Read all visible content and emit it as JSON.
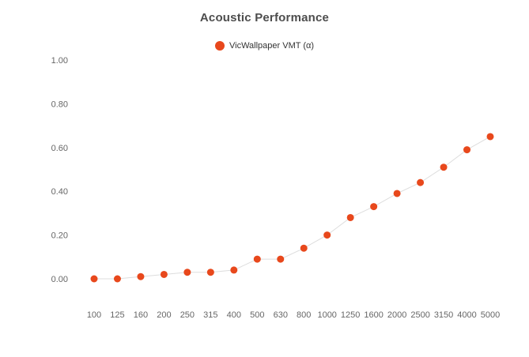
{
  "chart_data": {
    "type": "line",
    "title": "Acoustic Performance",
    "legend": {
      "label": "VicWallpaper VMT (α)",
      "position": "top",
      "marker_color": "#e8481c"
    },
    "categories": [
      "100",
      "125",
      "160",
      "200",
      "250",
      "315",
      "400",
      "500",
      "630",
      "800",
      "1000",
      "1250",
      "1600",
      "2000",
      "2500",
      "3150",
      "4000",
      "5000"
    ],
    "series": [
      {
        "name": "VicWallpaper VMT (α)",
        "values": [
          0.0,
          0.0,
          0.01,
          0.02,
          0.03,
          0.03,
          0.04,
          0.09,
          0.09,
          0.14,
          0.2,
          0.28,
          0.33,
          0.39,
          0.44,
          0.51,
          0.59,
          0.65
        ]
      }
    ],
    "xlabel": "",
    "ylabel": "",
    "ylim": [
      0.0,
      1.0
    ],
    "yticks": [
      0.0,
      0.2,
      0.4,
      0.6,
      0.8,
      1.0
    ],
    "grid": false,
    "line_color": "#dddddd",
    "marker_color": "#e8481c",
    "title_color": "#4d4d4d",
    "axis_label_color": "#666666"
  }
}
